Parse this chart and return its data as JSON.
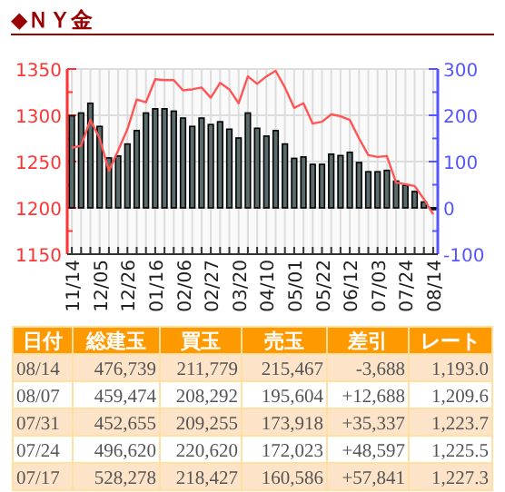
{
  "chart_data": {
    "type": "bar",
    "title": "◆ＮＹ金",
    "categories": [
      "11/14",
      null,
      null,
      "12/05",
      null,
      null,
      "12/26",
      null,
      null,
      "01/16",
      null,
      null,
      "02/06",
      null,
      null,
      "02/27",
      null,
      null,
      "03/20",
      null,
      null,
      "04/10",
      null,
      null,
      "05/01",
      null,
      null,
      "05/22",
      null,
      null,
      "06/12",
      null,
      null,
      "07/03",
      null,
      null,
      "07/24",
      null,
      null,
      "08/14"
    ],
    "series": [
      {
        "axis": "y2",
        "color": "#5a6b6b",
        "values": [
          199,
          205,
          226,
          176,
          108,
          112,
          138,
          167,
          205,
          214,
          214,
          209,
          194,
          176,
          194,
          180,
          186,
          170,
          151,
          205,
          172,
          155,
          167,
          138,
          107,
          110,
          94,
          94,
          116,
          113,
          120,
          98,
          78,
          78,
          81,
          57.841,
          48.597,
          35.337,
          12.688,
          -3.688
        ]
      },
      {
        "type": "line",
        "axis": "y",
        "color": "#ff5555",
        "values": [
          1265,
          1267,
          1295,
          1275,
          1240,
          1262,
          1285,
          1317,
          1314,
          1339,
          1338,
          1338,
          1327,
          1328,
          1330,
          1319,
          1335,
          1328,
          1313,
          1342,
          1334,
          1342,
          1348,
          1330,
          1308,
          1313,
          1291,
          1293,
          1301,
          1299,
          1295,
          1275,
          1257,
          1255,
          1256,
          1227.3,
          1225.5,
          1223.7,
          1209.6,
          1193.0
        ]
      }
    ],
    "ylim": [
      1150,
      1350
    ],
    "yticks": [
      1150,
      1200,
      1250,
      1300,
      1350
    ],
    "y2lim": [
      -100,
      300
    ],
    "y2ticks": [
      -100,
      0,
      100,
      200,
      300
    ],
    "grid": true,
    "annotations": [
      "日付",
      "総建玉",
      "買玉",
      "売玉",
      "差引",
      "レート",
      "08/14",
      "476,739",
      "211,779",
      "215,467",
      "-3,688",
      "1,193.0",
      "08/07",
      "459,474",
      "208,292",
      "195,604",
      "+12,688",
      "1,209.6",
      "07/31",
      "452,655",
      "209,255",
      "173,918",
      "+35,337",
      "1,223.7",
      "07/24",
      "496,620",
      "220,620",
      "172,023",
      "+48,597",
      "1,225.5",
      "07/17",
      "528,278",
      "218,427",
      "160,586",
      "+57,841",
      "1,227.3"
    ]
  }
}
